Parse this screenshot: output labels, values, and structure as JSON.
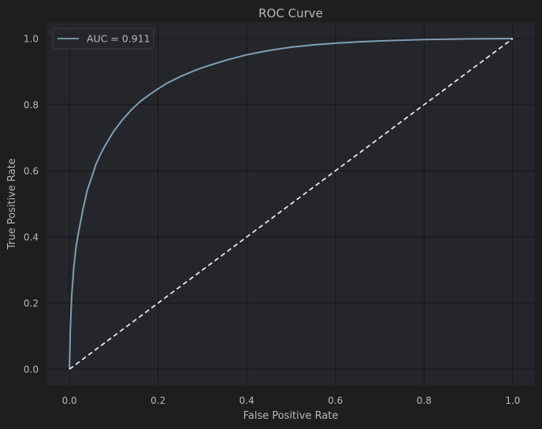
{
  "chart_data": {
    "type": "line",
    "title": "ROC Curve",
    "xlabel": "False Positive Rate",
    "ylabel": "True Positive Rate",
    "xlim": [
      -0.05,
      1.05
    ],
    "ylim": [
      -0.05,
      1.05
    ],
    "xticks": [
      0.0,
      0.2,
      0.4,
      0.6,
      0.8,
      1.0
    ],
    "yticks": [
      0.0,
      0.2,
      0.4,
      0.6,
      0.8,
      1.0
    ],
    "xtick_labels": [
      "0.0",
      "0.2",
      "0.4",
      "0.6",
      "0.8",
      "1.0"
    ],
    "ytick_labels": [
      "0.0",
      "0.2",
      "0.4",
      "0.6",
      "0.8",
      "1.0"
    ],
    "grid": true,
    "legend_position": "top-left",
    "series": [
      {
        "name": "AUC = 0.911",
        "color": "#7f9fb3",
        "style": "solid",
        "x": [
          0.0,
          0.002,
          0.005,
          0.01,
          0.015,
          0.02,
          0.03,
          0.04,
          0.05,
          0.06,
          0.07,
          0.08,
          0.1,
          0.12,
          0.14,
          0.16,
          0.18,
          0.2,
          0.22,
          0.25,
          0.28,
          0.3,
          0.33,
          0.36,
          0.4,
          0.45,
          0.5,
          0.55,
          0.6,
          0.65,
          0.7,
          0.8,
          0.9,
          1.0
        ],
        "y": [
          0.0,
          0.12,
          0.22,
          0.31,
          0.37,
          0.41,
          0.48,
          0.54,
          0.58,
          0.62,
          0.65,
          0.675,
          0.72,
          0.755,
          0.785,
          0.81,
          0.83,
          0.848,
          0.865,
          0.885,
          0.902,
          0.912,
          0.925,
          0.937,
          0.951,
          0.964,
          0.974,
          0.981,
          0.986,
          0.99,
          0.993,
          0.997,
          0.999,
          1.0
        ]
      },
      {
        "name": "",
        "color": "#e6e6e6",
        "style": "dashed",
        "x": [
          0.0,
          1.0
        ],
        "y": [
          0.0,
          1.0
        ]
      }
    ],
    "colors": {
      "figure_background": "#1e1e1e",
      "plot_background": "#25262b",
      "grid": "#16171a",
      "text": "#b8b8b8",
      "legend_background": "#25262b",
      "legend_border": "#3a3b40"
    }
  }
}
